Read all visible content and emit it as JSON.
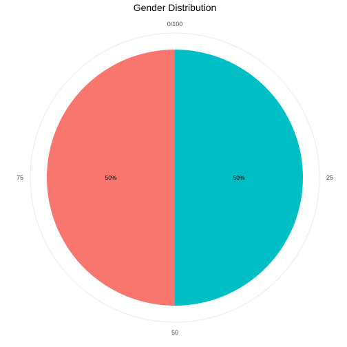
{
  "chart_data": {
    "type": "pie",
    "title": "Gender Distribution",
    "slices": [
      {
        "value": 50,
        "label": "50%",
        "color": "#00BFC4"
      },
      {
        "value": 50,
        "label": "50%",
        "color": "#F8766D"
      }
    ],
    "angular_axis": {
      "range": [
        0,
        100
      ],
      "ticks": [
        {
          "value": 0,
          "label": "0/100"
        },
        {
          "value": 25,
          "label": "25"
        },
        {
          "value": 50,
          "label": "50"
        },
        {
          "value": 75,
          "label": "75"
        }
      ]
    },
    "grid": true,
    "legend": "none"
  }
}
